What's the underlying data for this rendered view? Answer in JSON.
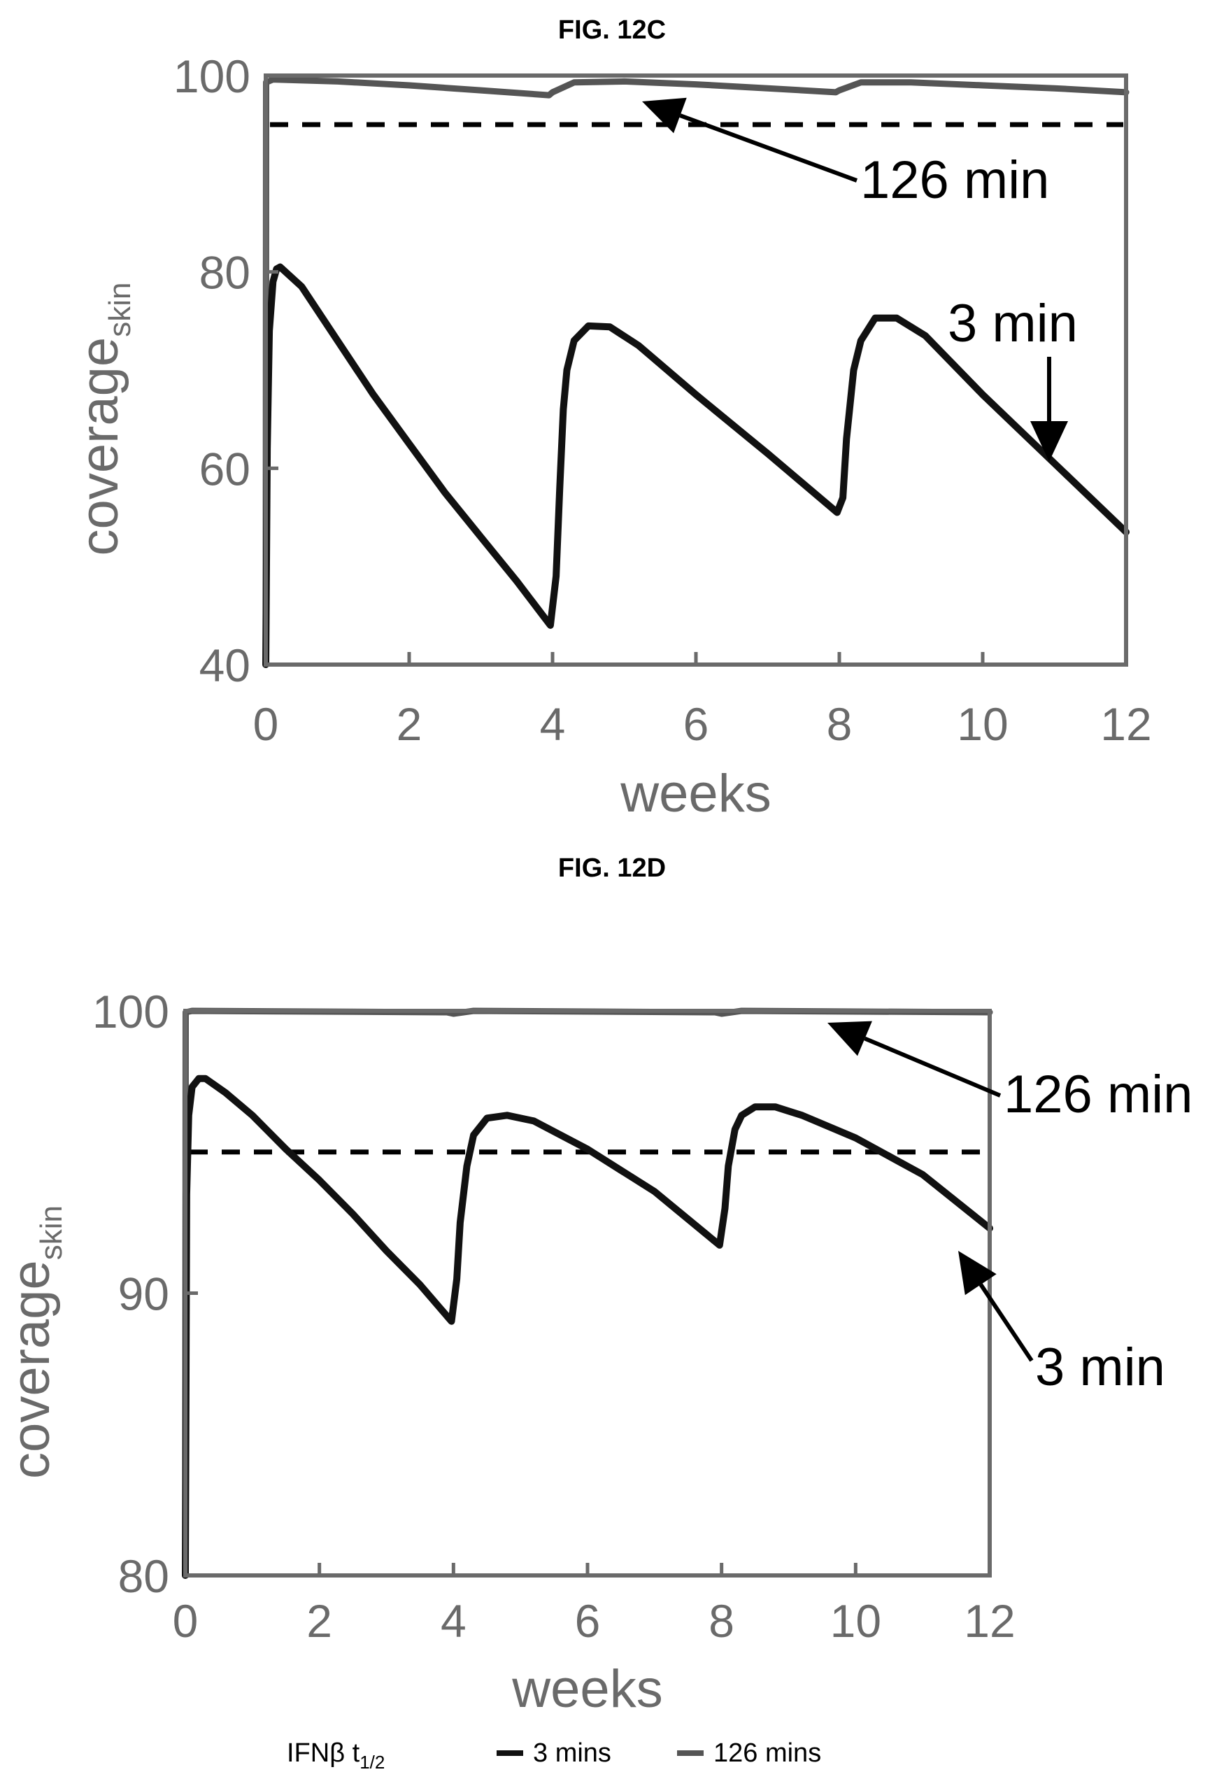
{
  "chart_data": [
    {
      "type": "line",
      "title": "FIG. 12C",
      "xlabel": "weeks",
      "ylabel": "coverage",
      "ylabel_sub": "skin",
      "xlim": [
        0,
        12
      ],
      "ylim": [
        40,
        100
      ],
      "xticks": [
        0,
        2,
        4,
        6,
        8,
        10,
        12
      ],
      "xtick_labels": [
        "0",
        "2",
        "4",
        "6",
        "8",
        "10",
        "12"
      ],
      "yticks": [
        40,
        60,
        80,
        100
      ],
      "ytick_labels": [
        "40",
        "60",
        "80",
        "100"
      ],
      "threshold": 95,
      "grid": false,
      "series": [
        {
          "name": "126 min",
          "color": "#555555",
          "x": [
            0,
            0.005,
            0.1,
            1,
            2,
            3,
            3.95,
            4.0,
            4.3,
            5,
            6,
            7,
            7.95,
            8.0,
            8.3,
            9,
            10,
            11,
            12
          ],
          "y": [
            40,
            99.3,
            99.6,
            99.4,
            99.0,
            98.5,
            98.0,
            98.3,
            99.3,
            99.4,
            99.1,
            98.7,
            98.3,
            98.5,
            99.3,
            99.3,
            99.0,
            98.7,
            98.3
          ]
        },
        {
          "name": "3 min",
          "color": "#111111",
          "x": [
            0,
            0.02,
            0.05,
            0.1,
            0.15,
            0.2,
            0.5,
            1,
            1.5,
            2,
            2.5,
            3,
            3.5,
            3.97,
            4.05,
            4.1,
            4.15,
            4.2,
            4.3,
            4.5,
            4.8,
            5.2,
            6,
            7,
            7.97,
            8.05,
            8.1,
            8.2,
            8.3,
            8.5,
            8.8,
            9.2,
            10,
            11,
            12
          ],
          "y": [
            40,
            62,
            74,
            79,
            80.3,
            80.5,
            78.5,
            73,
            67.5,
            62.5,
            57.5,
            53,
            48.5,
            44,
            49,
            58,
            66,
            70,
            73,
            74.5,
            74.4,
            72.5,
            67.5,
            61.5,
            55.5,
            57,
            63,
            70,
            73,
            75.3,
            75.3,
            73.5,
            67.5,
            60.5,
            53.5
          ]
        }
      ],
      "annotations": [
        {
          "text": "126 min",
          "x": 10.9,
          "y": 95
        },
        {
          "text": "3 min",
          "x": 11.0,
          "y": 73
        }
      ]
    },
    {
      "type": "line",
      "title": "FIG. 12D",
      "xlabel": "weeks",
      "ylabel": "coverage",
      "ylabel_sub": "skin",
      "xlim": [
        0,
        12
      ],
      "ylim": [
        80,
        100
      ],
      "xticks": [
        0,
        2,
        4,
        6,
        8,
        10,
        12
      ],
      "xtick_labels": [
        "0",
        "2",
        "4",
        "6",
        "8",
        "10",
        "12"
      ],
      "yticks": [
        80,
        90,
        100
      ],
      "ytick_labels": [
        "80",
        "90",
        "100"
      ],
      "threshold": 95,
      "grid": false,
      "series": [
        {
          "name": "126 min",
          "color": "#555555",
          "x": [
            0,
            0.005,
            0.1,
            3.9,
            4.0,
            4.3,
            7.9,
            8.0,
            8.3,
            12
          ],
          "y": [
            80,
            99.95,
            100,
            99.95,
            99.9,
            100,
            99.95,
            99.9,
            100,
            99.95
          ]
        },
        {
          "name": "3 min",
          "color": "#111111",
          "x": [
            0,
            0.02,
            0.05,
            0.1,
            0.2,
            0.3,
            0.6,
            1,
            1.5,
            2,
            2.5,
            3,
            3.5,
            3.97,
            4.05,
            4.1,
            4.2,
            4.3,
            4.5,
            4.8,
            5.2,
            6,
            7,
            7.97,
            8.05,
            8.1,
            8.2,
            8.3,
            8.5,
            8.8,
            9.2,
            10,
            11,
            12
          ],
          "y": [
            80,
            93.5,
            96.3,
            97.3,
            97.6,
            97.6,
            97.1,
            96.3,
            95.1,
            94.0,
            92.8,
            91.5,
            90.3,
            89.0,
            90.5,
            92.5,
            94.5,
            95.6,
            96.2,
            96.3,
            96.1,
            95.1,
            93.6,
            91.7,
            93.0,
            94.5,
            95.8,
            96.3,
            96.6,
            96.6,
            96.3,
            95.5,
            94.2,
            92.3
          ]
        }
      ],
      "annotations": [
        {
          "text": "126 min",
          "x": 12.1,
          "y": 99.2
        },
        {
          "text": "3 min",
          "x": 12.3,
          "y": 92.8
        }
      ],
      "legend": {
        "title": "IFNβ t",
        "title_sub": "1/2",
        "placement": "bottom",
        "entries": [
          "3 mins",
          "126 mins"
        ]
      }
    }
  ]
}
